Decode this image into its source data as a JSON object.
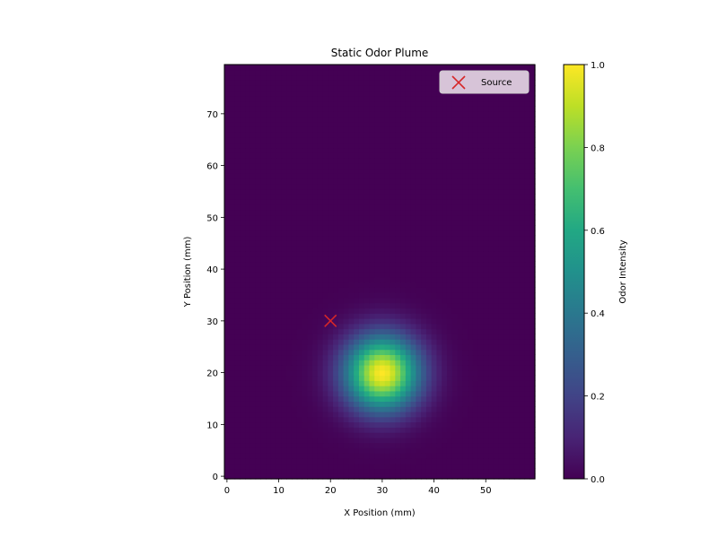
{
  "chart_data": {
    "type": "heatmap",
    "title": "Static Odor Plume",
    "xlabel": "X Position (mm)",
    "ylabel": "Y Position (mm)",
    "xlim": [
      -0.5,
      59.5
    ],
    "ylim": [
      -0.5,
      79.5
    ],
    "x_ticks": [
      0,
      10,
      20,
      30,
      40,
      50
    ],
    "x_tick_labels": [
      "0",
      "10",
      "20",
      "30",
      "40",
      "50"
    ],
    "y_ticks": [
      0,
      10,
      20,
      30,
      40,
      50,
      60,
      70
    ],
    "y_tick_labels": [
      "0",
      "10",
      "20",
      "30",
      "40",
      "50",
      "60",
      "70"
    ],
    "grid_shape": [
      80,
      60
    ],
    "plume": {
      "center_x": 30,
      "center_y": 20,
      "sigma": 5,
      "peak": 1.0
    },
    "source": {
      "x": 20,
      "y": 30,
      "label": "Source",
      "marker": "x",
      "color": "#d62728"
    },
    "legend": {
      "location": "upper right",
      "entries": [
        "Source"
      ]
    },
    "colorbar": {
      "label": "Odor Intensity",
      "colormap": "viridis",
      "range": [
        0,
        1
      ],
      "ticks": [
        0,
        0.2,
        0.4,
        0.6,
        0.8,
        1.0
      ],
      "tick_labels": [
        "0.0",
        "0.2",
        "0.4",
        "0.6",
        "0.8",
        "1.0"
      ]
    }
  }
}
